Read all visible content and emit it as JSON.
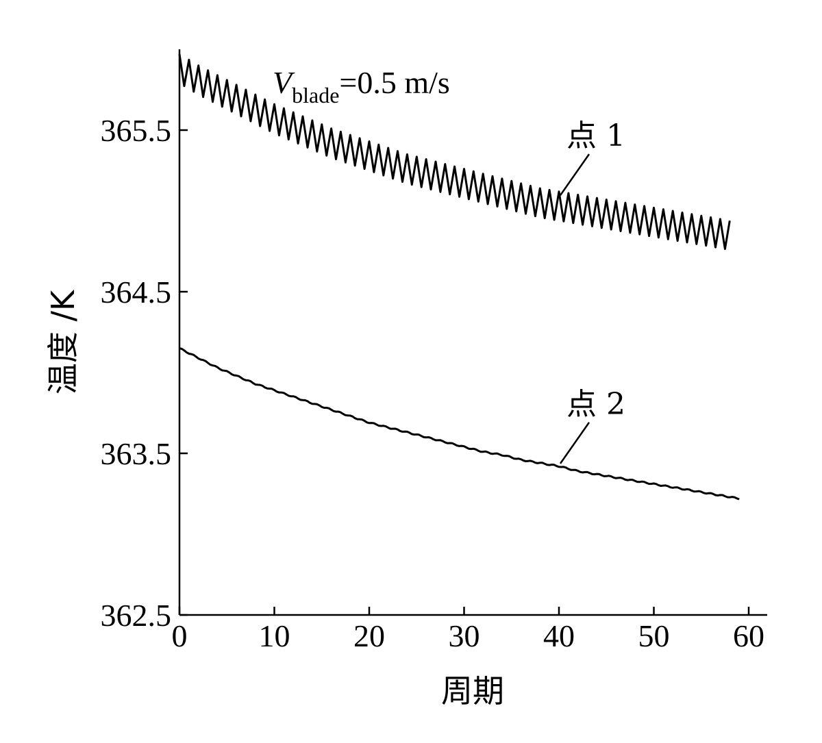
{
  "chart_data": {
    "type": "line",
    "title": "",
    "xlabel": "周期",
    "ylabel": "温度 /K",
    "xlim": [
      0,
      62
    ],
    "ylim": [
      362.5,
      366.0
    ],
    "xticks": [
      0,
      10,
      20,
      30,
      40,
      50,
      60
    ],
    "yticks": [
      362.5,
      363.5,
      364.5,
      365.5
    ],
    "xtick_labels": [
      "0",
      "10",
      "20",
      "30",
      "40",
      "50",
      "60"
    ],
    "ytick_labels": [
      "362.5",
      "363.5",
      "364.5",
      "365.5"
    ],
    "grid": false,
    "legend": "none",
    "annotation": {
      "var": "V",
      "sub": "blade",
      "rest": "=0.5 m/s"
    },
    "series": [
      {
        "name": "点 1",
        "color": "#000000",
        "style": "oscillating",
        "x": [
          0,
          2,
          4,
          6,
          8,
          10,
          12,
          14,
          16,
          18,
          20,
          22,
          24,
          26,
          28,
          30,
          32,
          34,
          36,
          38,
          40,
          42,
          44,
          46,
          48,
          50,
          52,
          54,
          56,
          58
        ],
        "mean": [
          365.88,
          365.81,
          365.75,
          365.69,
          365.63,
          365.57,
          365.52,
          365.47,
          365.42,
          365.38,
          365.34,
          365.3,
          365.26,
          365.23,
          365.2,
          365.17,
          365.14,
          365.11,
          365.08,
          365.05,
          365.03,
          365.01,
          364.99,
          364.97,
          364.95,
          364.93,
          364.91,
          364.89,
          364.87,
          364.85
        ],
        "amplitude": [
          0.09,
          0.09,
          0.09,
          0.09,
          0.09,
          0.09,
          0.09,
          0.09,
          0.09,
          0.09,
          0.09,
          0.09,
          0.09,
          0.09,
          0.09,
          0.09,
          0.09,
          0.09,
          0.09,
          0.09,
          0.09,
          0.09,
          0.09,
          0.09,
          0.09,
          0.09,
          0.09,
          0.09,
          0.09,
          0.09
        ]
      },
      {
        "name": "点 2",
        "color": "#000000",
        "style": "smooth",
        "x": [
          0,
          2,
          4,
          6,
          8,
          10,
          12,
          14,
          16,
          18,
          20,
          22,
          24,
          26,
          28,
          30,
          32,
          34,
          36,
          38,
          40,
          42,
          44,
          46,
          48,
          50,
          52,
          54,
          56,
          58,
          59
        ],
        "values": [
          364.15,
          364.09,
          364.03,
          363.98,
          363.93,
          363.89,
          363.85,
          363.81,
          363.77,
          363.73,
          363.69,
          363.66,
          363.63,
          363.6,
          363.57,
          363.54,
          363.51,
          363.49,
          363.46,
          363.44,
          363.42,
          363.39,
          363.37,
          363.35,
          363.33,
          363.31,
          363.29,
          363.27,
          363.25,
          363.23,
          363.22
        ]
      }
    ],
    "callouts": [
      {
        "text": "点 1",
        "series": 0,
        "x": 40
      },
      {
        "text": "点 2",
        "series": 1,
        "x": 40
      }
    ]
  }
}
